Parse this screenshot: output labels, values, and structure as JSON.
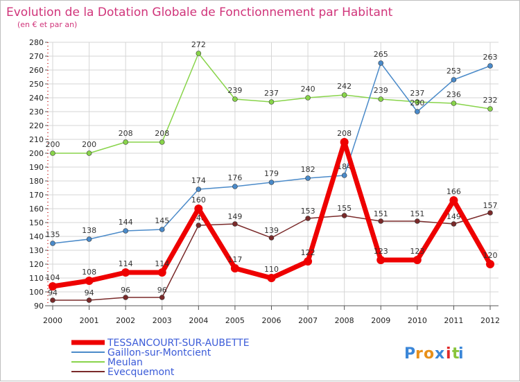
{
  "chart_data": {
    "type": "line",
    "title": "Evolution de la Dotation Globale de Fonctionnement par Habitant",
    "subtitle": "(en € et par an)",
    "xlabel": "",
    "ylabel": "",
    "ylim": [
      90,
      280
    ],
    "yticks": [
      90,
      100,
      110,
      120,
      130,
      140,
      150,
      160,
      170,
      180,
      190,
      200,
      210,
      220,
      230,
      240,
      250,
      260,
      270,
      280
    ],
    "categories": [
      "2000",
      "2001",
      "2002",
      "2003",
      "2004",
      "2005",
      "2006",
      "2007",
      "2008",
      "2009",
      "2010",
      "2011",
      "2012"
    ],
    "series": [
      {
        "name": "TESSANCOURT-SUR-AUBETTE",
        "color": "#ee0000",
        "values": [
          104,
          108,
          114,
          114,
          160,
          117,
          110,
          122,
          208,
          123,
          123,
          166,
          120
        ]
      },
      {
        "name": "Gaillon-sur-Montcient",
        "color": "#4a8ac9",
        "values": [
          135,
          138,
          144,
          145,
          174,
          176,
          179,
          182,
          184,
          265,
          230,
          253,
          263
        ]
      },
      {
        "name": "Meulan",
        "color": "#88d44a",
        "values": [
          200,
          200,
          208,
          208,
          272,
          239,
          237,
          240,
          242,
          239,
          237,
          236,
          232
        ]
      },
      {
        "name": "Evecquemont",
        "color": "#7a2a2a",
        "values": [
          94,
          94,
          96,
          96,
          148,
          149,
          139,
          153,
          155,
          151,
          151,
          149,
          157
        ]
      }
    ],
    "legend_position": "bottom-left"
  },
  "logo": {
    "text": "Proxiti",
    "letters": [
      "P",
      "r",
      "o",
      "x",
      "i",
      "t",
      "i"
    ],
    "colors": [
      "#3a86d8",
      "#e8901a",
      "#e8901a",
      "#3a86d8",
      "#e02a2a",
      "#88c43a",
      "#3a86d8"
    ]
  }
}
